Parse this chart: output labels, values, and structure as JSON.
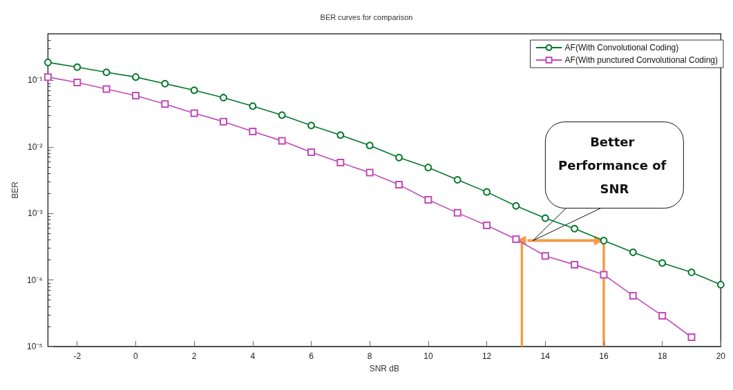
{
  "chart_data": {
    "type": "line",
    "title": "BER curves for comparison",
    "xlabel": "SNR dB",
    "ylabel": "BER",
    "x": [
      -3,
      -2,
      -1,
      0,
      1,
      2,
      3,
      4,
      5,
      6,
      7,
      8,
      9,
      10,
      11,
      12,
      13,
      14,
      15,
      16,
      17,
      18,
      19,
      20
    ],
    "series": [
      {
        "name": "AF(With Convolutional Coding)",
        "color": "#00782a",
        "marker": "circle",
        "values": [
          0.186,
          0.158,
          0.132,
          0.112,
          0.089,
          0.071,
          0.055,
          0.041,
          0.03,
          0.021,
          0.015,
          0.0105,
          0.0069,
          0.0049,
          0.0032,
          0.0021,
          0.0013,
          0.00085,
          0.00059,
          0.00039,
          0.00026,
          0.00018,
          0.00013,
          8.5e-05
        ]
      },
      {
        "name": "AF(With punctured Convolutional Coding)",
        "color": "#c04ab8",
        "marker": "square",
        "values": [
          0.112,
          0.093,
          0.074,
          0.059,
          0.044,
          0.032,
          0.024,
          0.017,
          0.0123,
          0.0083,
          0.0058,
          0.0041,
          0.0027,
          0.0016,
          0.00102,
          0.00066,
          0.00041,
          0.00023,
          0.00017,
          0.00012,
          5.8e-05,
          2.9e-05,
          1.38e-05,
          null
        ]
      }
    ],
    "log": "y",
    "xlim": [
      -3,
      20
    ],
    "xticks": [
      -2,
      0,
      2,
      4,
      6,
      8,
      10,
      12,
      14,
      16,
      18,
      20
    ],
    "ylim": [
      1e-05,
      0.5
    ],
    "yticks": [
      {
        "value": 1e-05,
        "label": "10⁻⁵"
      },
      {
        "value": 0.0001,
        "label": "10⁻⁴"
      },
      {
        "value": 0.001,
        "label": "10⁻³"
      },
      {
        "value": 0.01,
        "label": "10⁻²"
      },
      {
        "value": 0.1,
        "label": "10⁻¹"
      }
    ],
    "grid": false,
    "legend": "top right",
    "line_style": "solid",
    "ref_lines": [
      {
        "axis": "x",
        "value": 13.2,
        "color": "#f39c4a"
      },
      {
        "axis": "x",
        "value": 16,
        "color": "#f39c4a"
      }
    ],
    "annotations": [
      "Better Performance of SNR"
    ]
  }
}
